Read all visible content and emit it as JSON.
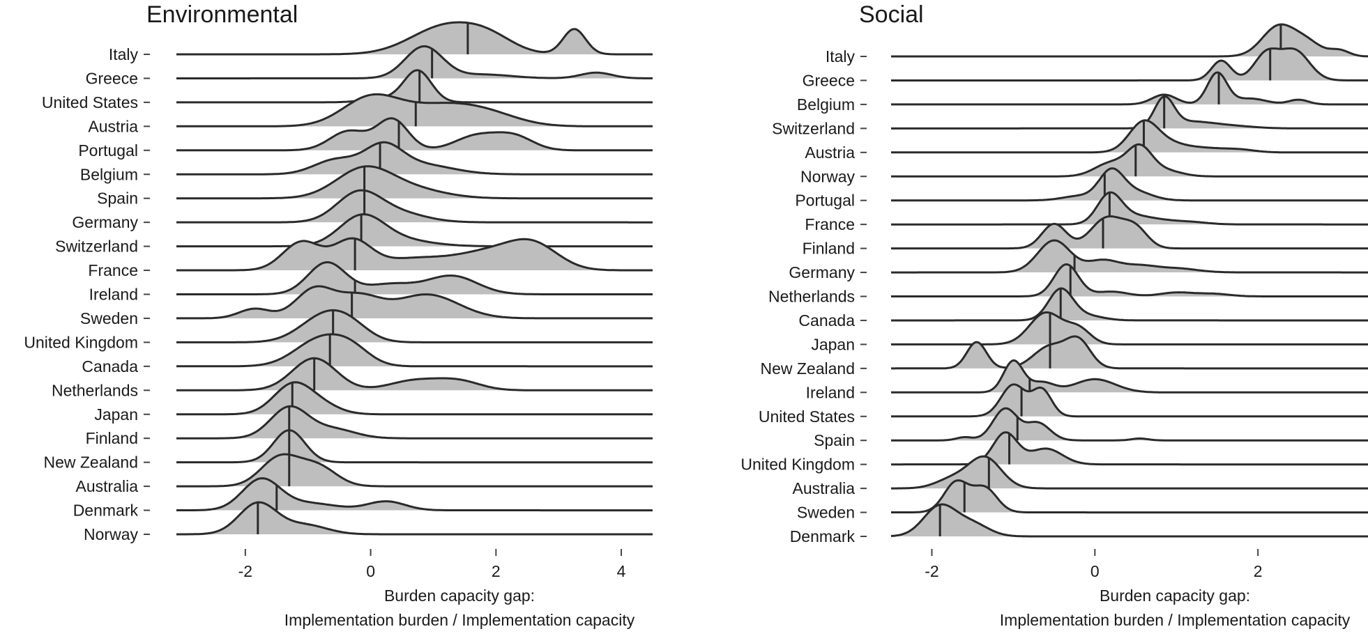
{
  "chart_data": [
    {
      "type": "ridgeline",
      "title": "Environmental",
      "xlabel_line1": "Burden capacity gap:",
      "xlabel_line2": "Implementation burden / Implementation capacity",
      "xlim": [
        -3.1,
        4.5
      ],
      "xticks": [
        -2,
        0,
        2,
        4
      ],
      "xtick_labels": [
        "-2",
        "0",
        "2",
        "4"
      ],
      "fill_color": "#bebebe",
      "line_color": "#2a2a2a",
      "ridges": [
        {
          "name": "Italy",
          "median": 1.55,
          "modes": [
            [
              1.2,
              0.55,
              1.0
            ],
            [
              1.9,
              0.4,
              0.45
            ],
            [
              3.25,
              0.18,
              0.9
            ]
          ]
        },
        {
          "name": "Greece",
          "median": 0.98,
          "modes": [
            [
              0.85,
              0.3,
              1.0
            ],
            [
              1.8,
              0.45,
              0.12
            ],
            [
              3.6,
              0.25,
              0.18
            ]
          ]
        },
        {
          "name": "United States",
          "median": 0.78,
          "modes": [
            [
              0.75,
              0.22,
              1.0
            ],
            [
              0.2,
              0.3,
              0.12
            ]
          ]
        },
        {
          "name": "Austria",
          "median": 0.72,
          "modes": [
            [
              0.0,
              0.45,
              0.6
            ],
            [
              1.1,
              0.6,
              0.42
            ],
            [
              1.9,
              0.5,
              0.2
            ]
          ]
        },
        {
          "name": "Portugal",
          "median": 0.45,
          "modes": [
            [
              -0.35,
              0.3,
              0.5
            ],
            [
              0.35,
              0.25,
              0.8
            ],
            [
              1.7,
              0.35,
              0.38
            ],
            [
              2.3,
              0.3,
              0.34
            ]
          ]
        },
        {
          "name": "Belgium",
          "median": 0.15,
          "modes": [
            [
              -0.55,
              0.35,
              0.45
            ],
            [
              0.2,
              0.3,
              0.8
            ],
            [
              0.8,
              0.5,
              0.3
            ]
          ]
        },
        {
          "name": "Spain",
          "median": -0.1,
          "modes": [
            [
              -0.1,
              0.45,
              0.9
            ],
            [
              0.7,
              0.5,
              0.25
            ]
          ]
        },
        {
          "name": "Germany",
          "median": -0.1,
          "modes": [
            [
              -0.2,
              0.35,
              1.0
            ],
            [
              0.4,
              0.45,
              0.35
            ]
          ]
        },
        {
          "name": "Switzerland",
          "median": -0.15,
          "modes": [
            [
              -0.15,
              0.35,
              1.0
            ],
            [
              0.3,
              0.55,
              0.3
            ]
          ]
        },
        {
          "name": "France",
          "median": -0.25,
          "modes": [
            [
              -1.1,
              0.3,
              0.6
            ],
            [
              -0.3,
              0.3,
              0.6
            ],
            [
              0.7,
              0.6,
              0.25
            ],
            [
              2.6,
              0.4,
              0.5
            ],
            [
              1.9,
              0.5,
              0.35
            ]
          ]
        },
        {
          "name": "Ireland",
          "median": -0.25,
          "modes": [
            [
              -0.7,
              0.3,
              0.95
            ],
            [
              0.3,
              0.4,
              0.3
            ],
            [
              1.3,
              0.4,
              0.55
            ]
          ]
        },
        {
          "name": "Sweden",
          "median": -0.3,
          "modes": [
            [
              -1.85,
              0.25,
              0.2
            ],
            [
              -0.9,
              0.3,
              0.6
            ],
            [
              -0.2,
              0.35,
              0.45
            ],
            [
              0.9,
              0.5,
              0.5
            ]
          ]
        },
        {
          "name": "United Kingdom",
          "median": -0.6,
          "modes": [
            [
              -0.7,
              0.4,
              1.0
            ],
            [
              -0.3,
              0.3,
              0.3
            ]
          ]
        },
        {
          "name": "Canada",
          "median": -0.65,
          "modes": [
            [
              -0.8,
              0.4,
              1.0
            ],
            [
              -0.3,
              0.3,
              0.5
            ]
          ]
        },
        {
          "name": "Netherlands",
          "median": -0.9,
          "modes": [
            [
              -0.9,
              0.35,
              1.0
            ],
            [
              0.7,
              0.4,
              0.3
            ],
            [
              1.4,
              0.35,
              0.28
            ]
          ]
        },
        {
          "name": "Japan",
          "median": -1.25,
          "modes": [
            [
              -1.25,
              0.3,
              1.0
            ],
            [
              -0.8,
              0.3,
              0.3
            ]
          ]
        },
        {
          "name": "Finland",
          "median": -1.3,
          "modes": [
            [
              -1.3,
              0.3,
              1.0
            ],
            [
              -0.6,
              0.35,
              0.3
            ]
          ]
        },
        {
          "name": "New Zealand",
          "median": -1.3,
          "modes": [
            [
              -1.3,
              0.25,
              1.0
            ]
          ]
        },
        {
          "name": "Australia",
          "median": -1.3,
          "modes": [
            [
              -1.45,
              0.3,
              0.8
            ],
            [
              -0.85,
              0.3,
              0.55
            ]
          ]
        },
        {
          "name": "Denmark",
          "median": -1.5,
          "modes": [
            [
              -1.75,
              0.3,
              0.85
            ],
            [
              -1.0,
              0.45,
              0.2
            ],
            [
              0.25,
              0.3,
              0.25
            ]
          ]
        },
        {
          "name": "Norway",
          "median": -1.8,
          "modes": [
            [
              -1.8,
              0.3,
              1.0
            ],
            [
              -1.05,
              0.35,
              0.3
            ]
          ]
        }
      ]
    },
    {
      "type": "ridgeline",
      "title": "Social",
      "xlabel_line1": "Burden capacity gap:",
      "xlabel_line2": "Implementation burden / Implementation capacity",
      "xlim": [
        -2.5,
        3.35
      ],
      "xticks": [
        -2,
        0,
        2
      ],
      "xtick_labels": [
        "-2",
        "0",
        "2"
      ],
      "fill_color": "#bebebe",
      "line_color": "#2a2a2a",
      "ridges": [
        {
          "name": "Italy",
          "median": 2.28,
          "modes": [
            [
              2.25,
              0.2,
              1.0
            ],
            [
              2.6,
              0.18,
              0.45
            ],
            [
              3.0,
              0.12,
              0.2
            ]
          ]
        },
        {
          "name": "Greece",
          "median": 2.15,
          "modes": [
            [
              1.55,
              0.12,
              0.5
            ],
            [
              2.1,
              0.15,
              0.65
            ],
            [
              2.45,
              0.18,
              0.75
            ]
          ]
        },
        {
          "name": "Belgium",
          "median": 1.52,
          "modes": [
            [
              1.5,
              0.12,
              0.8
            ],
            [
              0.85,
              0.15,
              0.25
            ],
            [
              1.9,
              0.2,
              0.15
            ],
            [
              2.5,
              0.12,
              0.12
            ]
          ]
        },
        {
          "name": "Switzerland",
          "median": 0.85,
          "modes": [
            [
              0.85,
              0.12,
              1.0
            ],
            [
              1.15,
              0.25,
              0.2
            ],
            [
              1.6,
              0.3,
              0.1
            ]
          ]
        },
        {
          "name": "Austria",
          "median": 0.6,
          "modes": [
            [
              0.6,
              0.18,
              1.0
            ],
            [
              0.95,
              0.2,
              0.25
            ],
            [
              1.35,
              0.2,
              0.12
            ],
            [
              1.75,
              0.2,
              0.1
            ]
          ]
        },
        {
          "name": "Norway",
          "median": 0.5,
          "modes": [
            [
              0.55,
              0.15,
              0.9
            ],
            [
              0.2,
              0.2,
              0.45
            ],
            [
              0.85,
              0.2,
              0.2
            ]
          ]
        },
        {
          "name": "Portugal",
          "median": 0.12,
          "modes": [
            [
              0.2,
              0.15,
              1.0
            ],
            [
              0.5,
              0.2,
              0.3
            ],
            [
              -0.2,
              0.2,
              0.15
            ]
          ]
        },
        {
          "name": "France",
          "median": 0.18,
          "modes": [
            [
              0.18,
              0.15,
              1.0
            ],
            [
              0.5,
              0.2,
              0.25
            ],
            [
              0.85,
              0.2,
              0.1
            ],
            [
              1.2,
              0.2,
              0.07
            ]
          ]
        },
        {
          "name": "Finland",
          "median": 0.1,
          "modes": [
            [
              -0.5,
              0.15,
              0.4
            ],
            [
              0.15,
              0.2,
              0.5
            ],
            [
              0.5,
              0.15,
              0.3
            ]
          ]
        },
        {
          "name": "Germany",
          "median": -0.25,
          "modes": [
            [
              -0.5,
              0.2,
              0.8
            ],
            [
              0.1,
              0.2,
              0.3
            ],
            [
              0.55,
              0.2,
              0.15
            ],
            [
              1.0,
              0.25,
              0.1
            ]
          ]
        },
        {
          "name": "Netherlands",
          "median": -0.3,
          "modes": [
            [
              -0.35,
              0.15,
              1.0
            ],
            [
              0.2,
              0.2,
              0.15
            ],
            [
              1.0,
              0.2,
              0.12
            ],
            [
              1.45,
              0.2,
              0.08
            ]
          ]
        },
        {
          "name": "Canada",
          "median": -0.42,
          "modes": [
            [
              -0.42,
              0.15,
              1.0
            ],
            [
              -0.1,
              0.2,
              0.15
            ]
          ]
        },
        {
          "name": "Japan",
          "median": -0.55,
          "modes": [
            [
              -0.6,
              0.2,
              0.85
            ],
            [
              -0.2,
              0.15,
              0.4
            ]
          ]
        },
        {
          "name": "New Zealand",
          "median": -0.55,
          "modes": [
            [
              -1.45,
              0.12,
              0.6
            ],
            [
              -0.55,
              0.2,
              0.5
            ],
            [
              -0.2,
              0.15,
              0.6
            ]
          ]
        },
        {
          "name": "Ireland",
          "median": -0.8,
          "modes": [
            [
              -1.0,
              0.12,
              0.95
            ],
            [
              -0.65,
              0.15,
              0.3
            ],
            [
              0.0,
              0.25,
              0.4
            ]
          ]
        },
        {
          "name": "United States",
          "median": -0.9,
          "modes": [
            [
              -1.0,
              0.15,
              0.9
            ],
            [
              -0.65,
              0.12,
              0.75
            ]
          ]
        },
        {
          "name": "Spain",
          "median": -0.95,
          "modes": [
            [
              -1.1,
              0.15,
              1.0
            ],
            [
              -0.7,
              0.15,
              0.55
            ],
            [
              -1.6,
              0.1,
              0.1
            ],
            [
              0.55,
              0.1,
              0.06
            ]
          ]
        },
        {
          "name": "United Kingdom",
          "median": -1.05,
          "modes": [
            [
              -1.1,
              0.15,
              1.0
            ],
            [
              -0.6,
              0.2,
              0.5
            ]
          ]
        },
        {
          "name": "Australia",
          "median": -1.3,
          "modes": [
            [
              -1.35,
              0.2,
              1.0
            ],
            [
              -1.75,
              0.2,
              0.3
            ]
          ]
        },
        {
          "name": "Sweden",
          "median": -1.6,
          "modes": [
            [
              -1.7,
              0.15,
              1.0
            ],
            [
              -1.35,
              0.15,
              0.8
            ]
          ]
        },
        {
          "name": "Denmark",
          "median": -1.9,
          "modes": [
            [
              -1.9,
              0.2,
              1.0
            ],
            [
              -1.5,
              0.2,
              0.4
            ]
          ]
        }
      ]
    }
  ]
}
